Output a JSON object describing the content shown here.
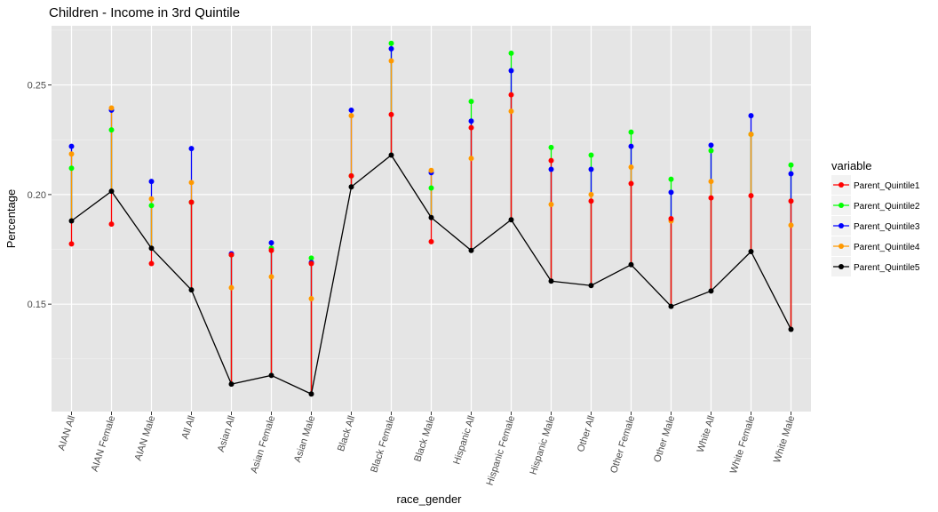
{
  "chart_data": {
    "type": "line",
    "title": "Children - Income in 3rd Quintile",
    "xlabel": "race_gender",
    "ylabel": "Percentage",
    "ylim": [
      0.101,
      0.277
    ],
    "y_ticks": [
      0.15,
      0.2,
      0.25
    ],
    "y_tick_labels": [
      "0.15",
      "0.20",
      "0.25"
    ],
    "grid": true,
    "legend_position": "right",
    "legend_title": "variable",
    "categories": [
      "AIAN All",
      "AIAN Female",
      "AIAN Male",
      "All All",
      "Asian All",
      "Asian Female",
      "Asian Male",
      "Black All",
      "Black Female",
      "Black Male",
      "Hispanic All",
      "Hispanic Female",
      "Hispanic Male",
      "Other All",
      "Other Female",
      "Other Male",
      "White All",
      "White Female",
      "White Male"
    ],
    "series": [
      {
        "name": "Parent_Quintile1",
        "color": "#ff0000",
        "values": [
          0.1775,
          0.1865,
          0.1685,
          0.1965,
          0.1725,
          0.1745,
          0.1685,
          0.2085,
          0.2365,
          0.1785,
          0.2305,
          0.2455,
          0.2155,
          0.197,
          0.205,
          0.189,
          0.1985,
          0.1995,
          0.197
        ]
      },
      {
        "name": "Parent_Quintile2",
        "color": "#00ff00",
        "values": [
          0.212,
          0.2295,
          0.195,
          0.1965,
          0.1725,
          0.1755,
          0.171,
          0.2085,
          0.269,
          0.203,
          0.2425,
          0.2645,
          0.2215,
          0.218,
          0.2285,
          0.207,
          0.22,
          0.2275,
          0.2135
        ]
      },
      {
        "name": "Parent_Quintile3",
        "color": "#0000ff",
        "values": [
          0.222,
          0.2385,
          0.206,
          0.221,
          0.173,
          0.178,
          0.169,
          0.2385,
          0.2665,
          0.21,
          0.2335,
          0.2565,
          0.2115,
          0.2115,
          0.222,
          0.201,
          0.2225,
          0.236,
          0.2095
        ]
      },
      {
        "name": "Parent_Quintile4",
        "color": "#ff9900",
        "values": [
          0.2185,
          0.2395,
          0.198,
          0.2055,
          0.1575,
          0.1625,
          0.1525,
          0.236,
          0.261,
          0.211,
          0.2165,
          0.238,
          0.1955,
          0.2,
          0.2125,
          0.188,
          0.206,
          0.2275,
          0.186
        ]
      },
      {
        "name": "Parent_Quintile5",
        "color": "#000000",
        "values": [
          0.188,
          0.2015,
          0.1755,
          0.1565,
          0.1135,
          0.1175,
          0.109,
          0.2035,
          0.218,
          0.1895,
          0.1745,
          0.1885,
          0.1605,
          0.1585,
          0.168,
          0.149,
          0.156,
          0.174,
          0.1385
        ]
      }
    ]
  }
}
